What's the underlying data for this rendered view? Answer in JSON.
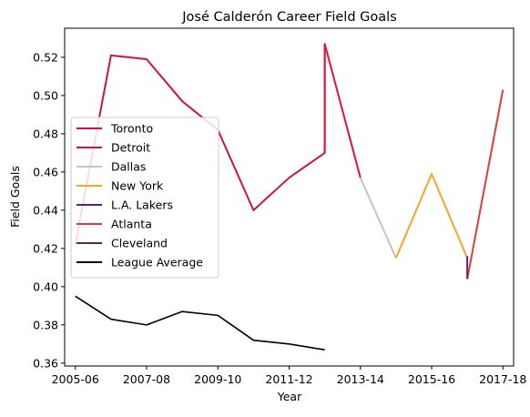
{
  "chart_data": {
    "type": "line",
    "title": "José Calderón  Career Field Goals",
    "xlabel": "Year",
    "ylabel": "Field Goals",
    "x_tick_labels": [
      "2005-06",
      "2007-08",
      "2009-10",
      "2011-12",
      "2013-14",
      "2015-16",
      "2017-18"
    ],
    "y_ticks": [
      0.36,
      0.38,
      0.4,
      0.42,
      0.44,
      0.46,
      0.48,
      0.5,
      0.52
    ],
    "xlim": [
      -0.3,
      12.3
    ],
    "ylim": [
      0.3585,
      0.5352
    ],
    "legend_position": "center-left",
    "grid": false,
    "series": [
      {
        "name": "Toronto",
        "color": "#ce1141",
        "x": [
          0,
          1,
          2,
          3,
          4,
          5,
          6,
          7,
          7
        ],
        "values": [
          0.422,
          0.521,
          0.519,
          0.497,
          0.482,
          0.44,
          0.457,
          0.47,
          0.527
        ]
      },
      {
        "name": "Detroit",
        "color": "#dc143c",
        "x": [
          7,
          7,
          8
        ],
        "values": [
          0.47,
          0.527,
          0.457
        ]
      },
      {
        "name": "Dallas",
        "color": "#c4c4c4",
        "x": [
          8,
          9
        ],
        "values": [
          0.457,
          0.415
        ]
      },
      {
        "name": "New York",
        "color": "#f5a623",
        "x": [
          9,
          10,
          11
        ],
        "values": [
          0.415,
          0.459,
          0.415
        ]
      },
      {
        "name": "L.A. Lakers",
        "color": "#552583",
        "x": [
          11,
          11
        ],
        "values": [
          0.416,
          0.406
        ]
      },
      {
        "name": "Atlanta",
        "color": "#e03a3e",
        "x": [
          11,
          12
        ],
        "values": [
          0.404,
          0.503
        ]
      },
      {
        "name": "Cleveland",
        "color": "#6f263d",
        "x": [
          11,
          11
        ],
        "values": [
          0.404,
          0.408
        ]
      },
      {
        "name": "League Average",
        "color": "#000000",
        "x": [
          0,
          1,
          2,
          3,
          4,
          5,
          6,
          7
        ],
        "values": [
          0.395,
          0.383,
          0.38,
          0.387,
          0.385,
          0.372,
          0.37,
          0.367
        ]
      }
    ]
  }
}
